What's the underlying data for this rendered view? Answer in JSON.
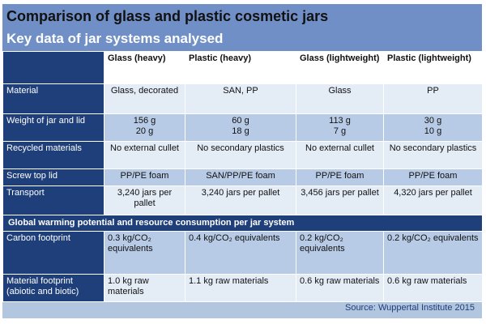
{
  "title": "Comparison of glass and plastic cosmetic jars",
  "subtitle": "Key data of jar systems analysed",
  "columns": [
    "Glass (heavy)",
    "Plastic (heavy)",
    "Glass (lightweight)",
    "Plastic (lightweight)"
  ],
  "rows": {
    "material": {
      "label": "Material",
      "values": [
        "Glass, decorated",
        "SAN, PP",
        "Glass",
        "PP"
      ]
    },
    "weight": {
      "label": "Weight of jar and lid",
      "jar": [
        "156 g",
        "60 g",
        "113 g",
        "30 g"
      ],
      "lid": [
        "20 g",
        "18 g",
        "7 g",
        "10 g"
      ]
    },
    "recycled": {
      "label": "Recycled materials",
      "values": [
        "No external cullet",
        "No secondary plastics",
        "No external cullet",
        "No secondary plastics"
      ]
    },
    "lid": {
      "label": "Screw top lid",
      "values": [
        "PP/PE foam",
        "SAN/PP/PE foam",
        "PP/PE foam",
        "PP/PE foam"
      ]
    },
    "transport": {
      "label": "Transport",
      "values": [
        "3,240 jars per pallet",
        "3,240 jars per pallet",
        "3,456 jars per pallet",
        "4,320 jars per pallet"
      ]
    }
  },
  "section_heading": "Global warming potential and resource consumption per jar system",
  "carbon": {
    "label": "Carbon footprint",
    "values": [
      "0.3 kg/CO₂ equivalents",
      "0.4 kg/CO₂ equivalents",
      "0.2 kg/CO₂ equivalents",
      "0.2 kg/CO₂ equivalents"
    ]
  },
  "material_fp": {
    "label": "Material footprint (abiotic and biotic)",
    "values": [
      "1.0 kg raw materials",
      "1.1 kg raw materials",
      "0.6 kg raw materials",
      "0.6 kg raw materials"
    ]
  },
  "source": "Source: Wuppertal Institute 2015"
}
